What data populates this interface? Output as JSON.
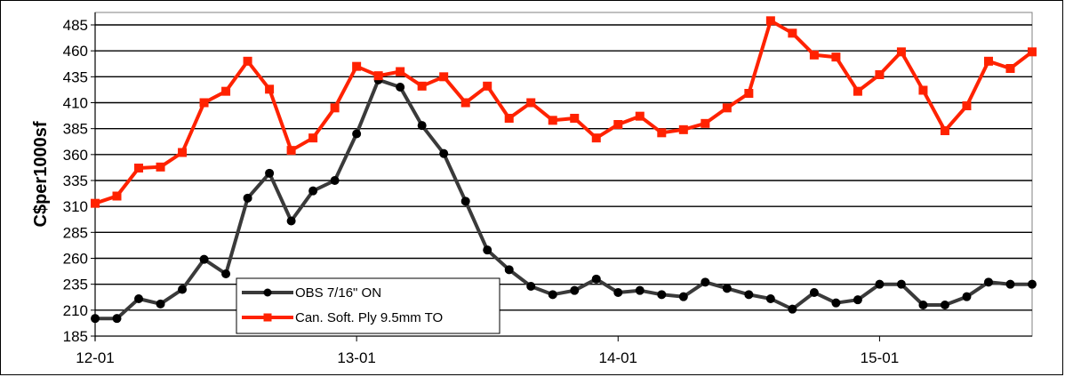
{
  "chart_data": {
    "type": "line",
    "title": "",
    "xlabel": "",
    "ylabel": "C$per1000sf",
    "ylim": [
      185,
      497
    ],
    "yticks": [
      185,
      210,
      235,
      260,
      285,
      310,
      335,
      360,
      385,
      410,
      435,
      460,
      485
    ],
    "x_tick_labels": [
      {
        "label": "12-01",
        "index": 0
      },
      {
        "label": "13-01",
        "index": 12
      },
      {
        "label": "14-01",
        "index": 24
      },
      {
        "label": "15-01",
        "index": 36
      }
    ],
    "grid": true,
    "legend_position": "bottom-left",
    "series": [
      {
        "name": "OBS 7/16\" ON",
        "color": "#3a3a3a",
        "marker": "circle",
        "values": [
          202,
          202,
          221,
          216,
          230,
          259,
          245,
          318,
          342,
          296,
          325,
          335,
          380,
          432,
          425,
          388,
          361,
          315,
          268,
          249,
          233,
          225,
          229,
          240,
          227,
          229,
          225,
          223,
          237,
          231,
          225,
          221,
          211,
          227,
          217,
          220,
          235,
          235,
          215,
          215,
          223,
          237,
          235,
          235
        ]
      },
      {
        "name": "Can. Soft. Ply 9.5mm TO",
        "color": "#ff2200",
        "marker": "square",
        "values": [
          313,
          320,
          347,
          348,
          362,
          410,
          421,
          450,
          423,
          364,
          376,
          405,
          445,
          436,
          440,
          426,
          435,
          410,
          426,
          395,
          410,
          393,
          395,
          376,
          389,
          397,
          381,
          384,
          390,
          405,
          419,
          489,
          477,
          456,
          454,
          421,
          437,
          459,
          422,
          383,
          407,
          450,
          443,
          459
        ]
      }
    ]
  }
}
